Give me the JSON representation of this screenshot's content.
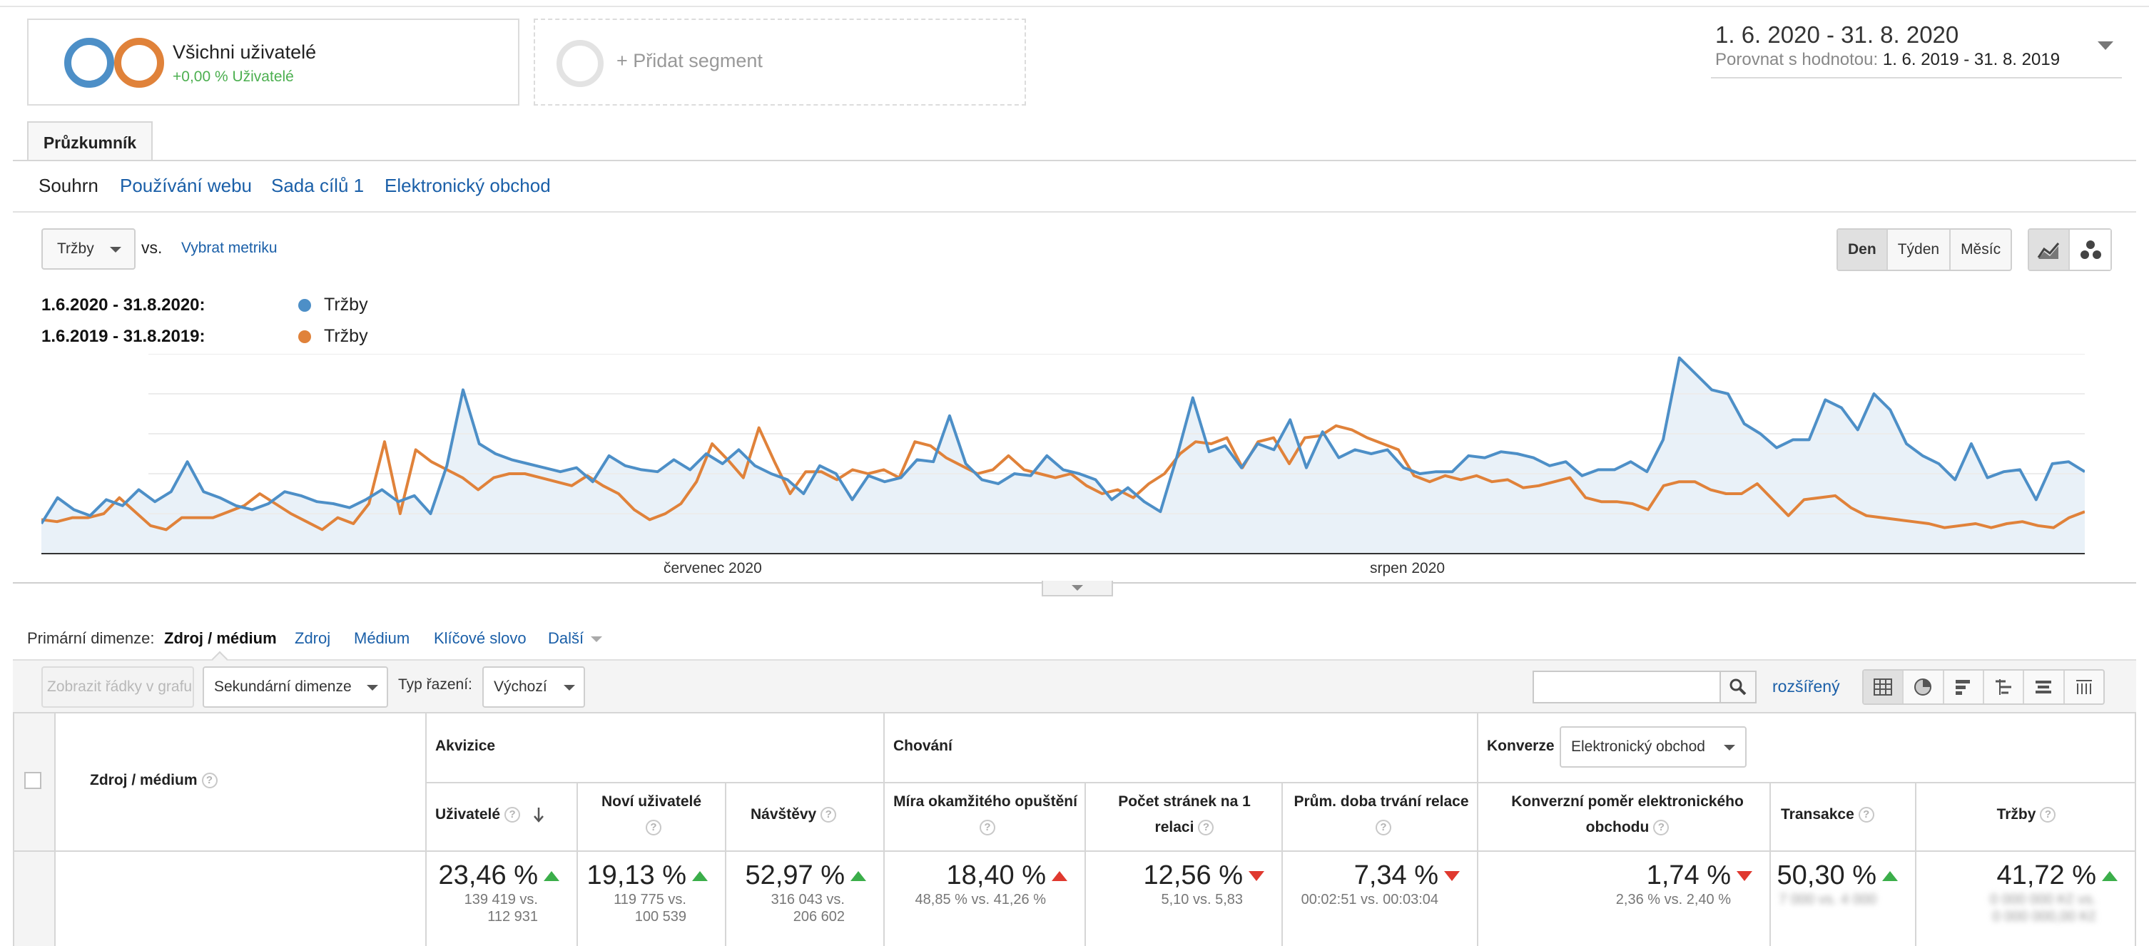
{
  "colors": {
    "series_current": "#4d8fc7",
    "series_previous": "#e0823a",
    "link": "#1a5fa8",
    "positive": "#3bae4a",
    "negative": "#e0392f"
  },
  "segment": {
    "title": "Všichni uživatelé",
    "subtitle": "+0,00 % Uživatelé",
    "add_label": "+ Přidat segment"
  },
  "date_range": {
    "main": "1. 6. 2020 - 31. 8. 2020",
    "compare_label": "Porovnat s hodnotou:",
    "compare_value": "1. 6. 2019 - 31. 8. 2019"
  },
  "explorer_tab": "Průzkumník",
  "subtabs": [
    "Souhrn",
    "Používání webu",
    "Sada cílů 1",
    "Elektronický obchod"
  ],
  "metric": {
    "selected": "Tržby",
    "vs": "vs.",
    "choose": "Vybrat metriku"
  },
  "period_buttons": [
    "Den",
    "Týden",
    "Měsíc"
  ],
  "view_icons": [
    "line-chart-icon",
    "motion-chart-icon"
  ],
  "legend": [
    {
      "range": "1.6.2020 - 31.8.2020:",
      "name": "Tržby"
    },
    {
      "range": "1.6.2019 - 31.8.2019:",
      "name": "Tržby"
    }
  ],
  "chart_data": {
    "type": "area",
    "x_labels": [
      "červenec 2020",
      "srpen 2020"
    ],
    "ylim": [
      0,
      100
    ],
    "grid": true,
    "series": [
      {
        "name": "Tržby",
        "values": [
          15,
          28,
          22,
          19,
          27,
          24,
          32,
          26,
          31,
          46,
          31,
          28,
          24,
          22,
          25,
          31,
          29,
          26,
          25,
          23,
          27,
          32,
          26,
          29,
          20,
          44,
          82,
          55,
          50,
          47,
          45,
          43,
          41,
          43,
          36,
          49,
          44,
          42,
          41,
          47,
          42,
          50,
          45,
          52,
          44,
          40,
          37,
          30,
          44,
          40,
          27,
          39,
          36,
          38,
          47,
          46,
          69,
          45,
          37,
          35,
          40,
          39,
          49,
          42,
          40,
          37,
          27,
          33,
          26,
          21,
          48,
          78,
          51,
          54,
          43,
          55,
          52,
          67,
          43,
          61,
          48,
          52,
          50,
          52,
          43,
          40,
          41,
          41,
          49,
          48,
          51,
          50,
          48,
          44,
          46,
          39,
          42,
          42,
          46,
          41,
          57,
          98,
          90,
          82,
          80,
          65,
          60,
          53,
          57,
          57,
          77,
          73,
          62,
          80,
          72,
          55,
          49,
          45,
          37,
          55,
          38,
          41,
          42,
          27,
          45,
          46,
          41
        ]
      },
      {
        "name": "Tržby",
        "values": [
          17,
          16,
          18,
          18,
          20,
          28,
          21,
          14,
          12,
          18,
          18,
          18,
          21,
          24,
          30,
          25,
          20,
          16,
          12,
          18,
          15,
          25,
          56,
          20,
          52,
          46,
          42,
          38,
          32,
          38,
          40,
          40,
          38,
          36,
          34,
          39,
          34,
          30,
          22,
          17,
          20,
          25,
          36,
          55,
          47,
          38,
          63,
          46,
          30,
          41,
          41,
          37,
          42,
          40,
          42,
          38,
          56,
          54,
          48,
          44,
          40,
          42,
          49,
          42,
          40,
          38,
          40,
          34,
          30,
          32,
          28,
          35,
          40,
          50,
          56,
          55,
          58,
          43,
          56,
          58,
          45,
          58,
          59,
          64,
          62,
          58,
          55,
          52,
          39,
          36,
          39,
          37,
          39,
          36,
          37,
          33,
          34,
          36,
          38,
          28,
          26,
          26,
          25,
          22,
          34,
          36,
          36,
          32,
          30,
          30,
          35,
          27,
          19,
          27,
          28,
          29,
          23,
          19,
          18,
          17,
          16,
          15,
          13,
          14,
          15,
          13,
          15,
          16,
          14,
          13,
          18,
          21
        ]
      }
    ]
  },
  "primary_dimension": {
    "label": "Primární dimenze:",
    "active": "Zdroj / médium",
    "links": [
      "Zdroj",
      "Médium",
      "Klíčové slovo",
      "Další"
    ]
  },
  "toolbar": {
    "plot_rows": "Zobrazit řádky v grafu",
    "secondary": "Sekundární dimenze",
    "sort_label": "Typ řazení:",
    "sort_value": "Výchozí",
    "search_placeholder": "",
    "advanced": "rozšířený"
  },
  "table": {
    "dimension_header": "Zdroj / médium",
    "groups": [
      "Akvizice",
      "Chování",
      "Konverze"
    ],
    "conversion_select": "Elektronický obchod",
    "columns": [
      {
        "label": "Uživatelé",
        "pct": "23,46 %",
        "dir": "up",
        "cmp1": "139 419 vs.",
        "cmp2": "112 931"
      },
      {
        "label": "Noví uživatelé",
        "pct": "19,13 %",
        "dir": "up",
        "cmp1": "119 775 vs.",
        "cmp2": "100 539"
      },
      {
        "label": "Návštěvy",
        "pct": "52,97 %",
        "dir": "up",
        "cmp1": "316 043 vs.",
        "cmp2": "206 602"
      },
      {
        "label": "Míra okamžitého opuštění",
        "pct": "18,40 %",
        "dir": "up-red",
        "cmp1": "48,85 % vs. 41,26 %",
        "cmp2": ""
      },
      {
        "label": "Počet stránek na 1 relaci",
        "pct": "12,56 %",
        "dir": "down",
        "cmp1": "5,10 vs. 5,83",
        "cmp2": ""
      },
      {
        "label": "Prům. doba trvání relace",
        "pct": "7,34 %",
        "dir": "down",
        "cmp1": "00:02:51 vs. 00:03:04",
        "cmp2": ""
      },
      {
        "label": "Konverzní poměr elektronického obchodu",
        "pct": "1,74 %",
        "dir": "down",
        "cmp1": "2,36 % vs. 2,40 %",
        "cmp2": ""
      },
      {
        "label": "Transakce",
        "pct": "50,30 %",
        "dir": "up",
        "cmp1": "7 000 vs. 4 000",
        "cmp2": ""
      },
      {
        "label": "Tržby",
        "pct": "41,72 %",
        "dir": "up",
        "cmp1": "0 000 000 Kč vs.",
        "cmp2": "0 000 000,00 Kč"
      }
    ]
  }
}
